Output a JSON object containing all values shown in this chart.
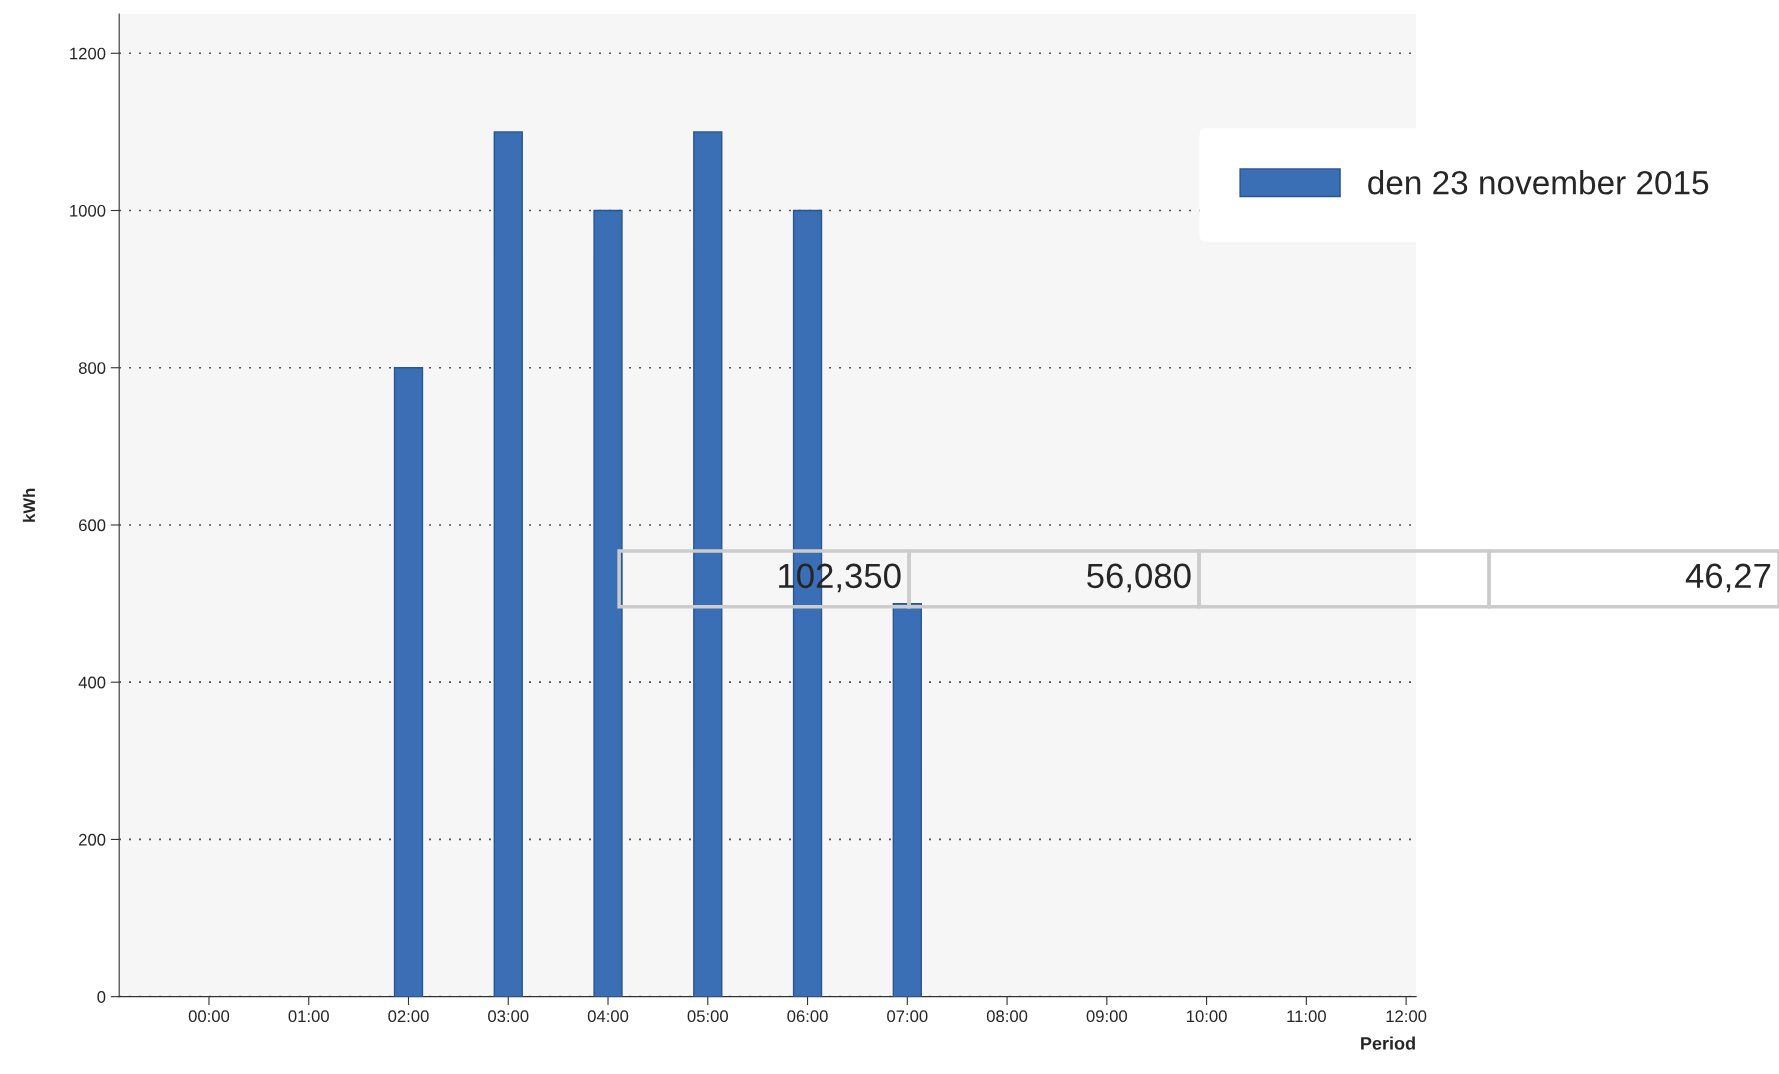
{
  "chart_data": {
    "type": "bar",
    "categories": [
      "00:00",
      "01:00",
      "02:00",
      "03:00",
      "04:00",
      "05:00",
      "06:00",
      "07:00",
      "08:00",
      "09:00",
      "10:00",
      "11:00",
      "12:00"
    ],
    "series": [
      {
        "name": "den 23 november 2015",
        "color": "#3a6fb5",
        "values": [
          null,
          null,
          800,
          1100,
          1000,
          1100,
          1000,
          500,
          null,
          null,
          null,
          null,
          null
        ]
      }
    ],
    "xlabel": "Period",
    "ylabel": "kWh",
    "ylim": [
      0,
      1250
    ],
    "yticks": [
      0,
      200,
      400,
      600,
      800,
      1000,
      1200
    ],
    "grid": "y",
    "legend": "top right",
    "annotations": [
      "102,350",
      "56,080",
      "46,27"
    ]
  }
}
